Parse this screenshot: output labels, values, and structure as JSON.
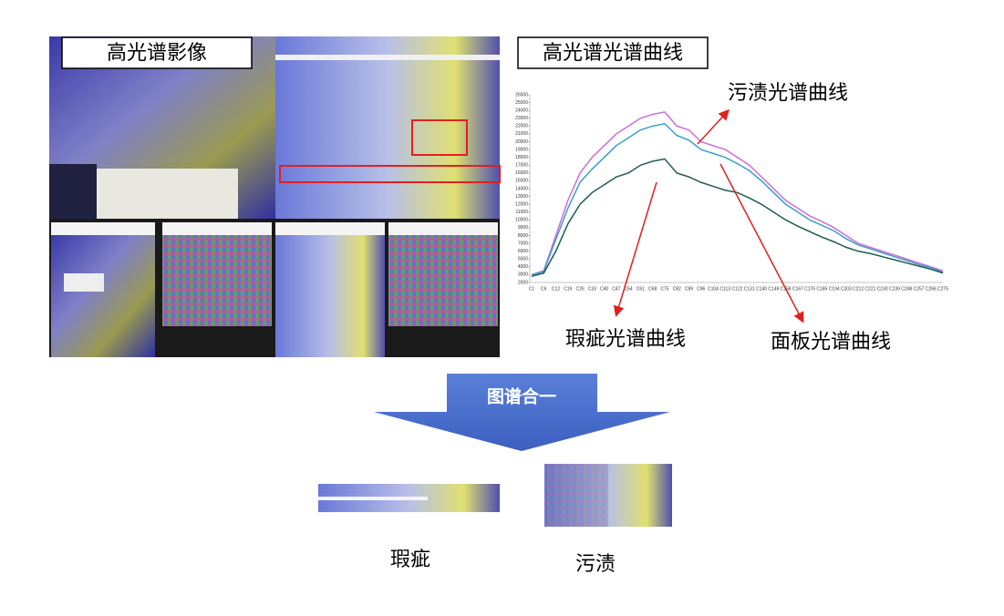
{
  "image_title": "高光谱影像",
  "chart_data": {
    "type": "line",
    "title": "高光谱光谱曲线",
    "categories": [
      "C1",
      "C6",
      "C12",
      "C19",
      "C26",
      "C33",
      "C40",
      "C47",
      "C54",
      "C61",
      "C68",
      "C75",
      "C82",
      "C89",
      "C96",
      "C104",
      "C113",
      "C122",
      "C131",
      "C140",
      "C149",
      "C158",
      "C167",
      "C176",
      "C185",
      "C194",
      "C203",
      "C212",
      "C221",
      "C230",
      "C239",
      "C248",
      "C257",
      "C266",
      "C275"
    ],
    "series": [
      {
        "name": "污渍光谱曲线",
        "color": "#d06cd8",
        "values": [
          3000,
          3500,
          8000,
          12500,
          16000,
          18000,
          19500,
          21000,
          22000,
          23000,
          23500,
          23800,
          22000,
          21500,
          20000,
          19500,
          19000,
          18000,
          17000,
          15500,
          14000,
          12500,
          11500,
          10500,
          9800,
          9000,
          8000,
          7000,
          6500,
          6000,
          5500,
          5000,
          4500,
          4000,
          3500
        ]
      },
      {
        "name": "面板光谱曲线",
        "color": "#3a9fc8",
        "values": [
          3000,
          3400,
          7500,
          11500,
          14800,
          16500,
          18000,
          19500,
          20500,
          21500,
          22000,
          22300,
          20800,
          20200,
          19000,
          18500,
          18000,
          17200,
          16300,
          15000,
          13500,
          12000,
          11000,
          10000,
          9300,
          8600,
          7600,
          6800,
          6300,
          5800,
          5300,
          4800,
          4300,
          3900,
          3300
        ]
      },
      {
        "name": "瑕疵光谱曲线",
        "color": "#1f5a50",
        "values": [
          2800,
          3200,
          6000,
          9500,
          12000,
          13500,
          14500,
          15500,
          16000,
          17000,
          17500,
          17800,
          16000,
          15500,
          14800,
          14300,
          13800,
          13500,
          12800,
          12000,
          11000,
          10000,
          9200,
          8500,
          7800,
          7200,
          6500,
          6000,
          5700,
          5300,
          4900,
          4500,
          4100,
          3700,
          3200
        ]
      }
    ],
    "ylim": [
      2000,
      26000
    ],
    "yticks": [
      2000,
      3000,
      4000,
      5000,
      6000,
      7000,
      8000,
      9000,
      10000,
      11000,
      12000,
      13000,
      14000,
      15000,
      16000,
      17000,
      18000,
      19000,
      20000,
      21000,
      22000,
      23000,
      24000,
      25000,
      26000
    ]
  },
  "arrow_label": "图谱合一",
  "results": [
    {
      "label": "瑕疵"
    },
    {
      "label": "污渍"
    }
  ]
}
